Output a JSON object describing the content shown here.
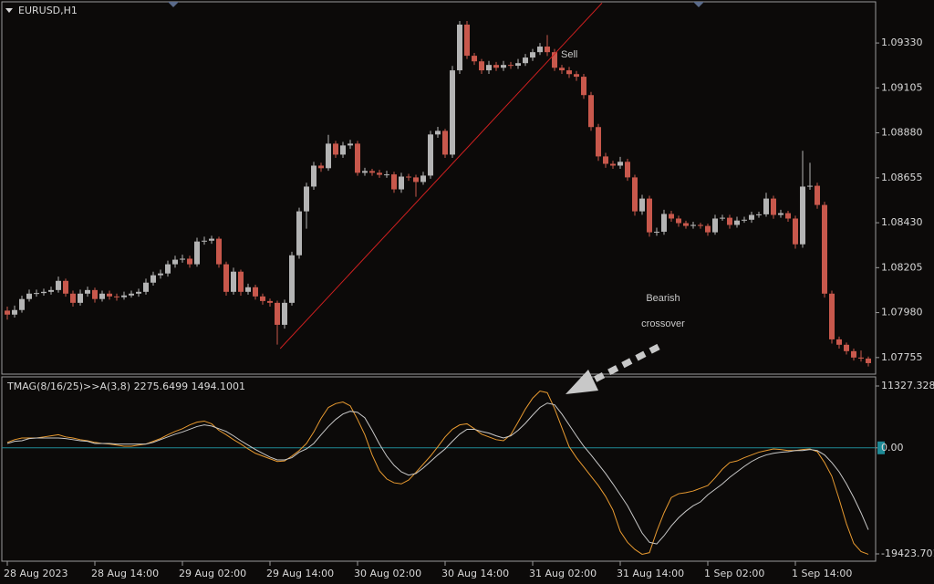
{
  "chart_data": [
    {
      "type": "candlestick",
      "title": "EURUSD,H1",
      "up_color": "#b4b4b4",
      "down_color": "#c8584c",
      "ylim": [
        1.07672,
        1.09536
      ],
      "yticks": [
        {
          "value": 1.0933,
          "label": "1.09330"
        },
        1.09105,
        {
          "value": 1.0888,
          "label": "1.08880"
        },
        1.08655,
        {
          "value": 1.0843,
          "label": "1.08430"
        },
        1.08205,
        {
          "value": 1.0798,
          "label": "1.07980"
        },
        1.07755
      ],
      "annotations": [
        {
          "lines": [
            "Sell"
          ]
        },
        {
          "lines": [
            "Bearish",
            "crossover"
          ]
        }
      ],
      "trendline": {
        "color": "#d02020",
        "points": [
          [
            37.4,
            1.078
          ],
          [
            81.5,
            1.0953
          ]
        ]
      },
      "candles": [
        [
          1.0799,
          1.0801,
          1.07945,
          1.0797
        ],
        [
          1.0797,
          1.08015,
          1.07955,
          1.07993
        ],
        [
          1.07993,
          1.08065,
          1.0798,
          1.08048
        ],
        [
          1.08048,
          1.08095,
          1.08035,
          1.08075
        ],
        [
          1.08075,
          1.08095,
          1.0806,
          1.08078
        ],
        [
          1.08078,
          1.081,
          1.08065,
          1.08084
        ],
        [
          1.08084,
          1.0811,
          1.0807,
          1.08093
        ],
        [
          1.08093,
          1.0816,
          1.0808,
          1.08139
        ],
        [
          1.08139,
          1.0815,
          1.0806,
          1.08075
        ],
        [
          1.08075,
          1.0809,
          1.0801,
          1.08029
        ],
        [
          1.08029,
          1.08095,
          1.08015,
          1.08075
        ],
        [
          1.08075,
          1.0811,
          1.0806,
          1.08093
        ],
        [
          1.08093,
          1.08105,
          1.0803,
          1.08048
        ],
        [
          1.08048,
          1.0809,
          1.08035,
          1.08075
        ],
        [
          1.08075,
          1.0809,
          1.08045,
          1.08061
        ],
        [
          1.08061,
          1.08075,
          1.0804,
          1.08057
        ],
        [
          1.08057,
          1.08085,
          1.08045,
          1.08066
        ],
        [
          1.08066,
          1.0809,
          1.08055,
          1.08075
        ],
        [
          1.08075,
          1.081,
          1.0806,
          1.08084
        ],
        [
          1.08084,
          1.0815,
          1.0807,
          1.0813
        ],
        [
          1.0813,
          1.08185,
          1.08115,
          1.08167
        ],
        [
          1.08167,
          1.08195,
          1.0815,
          1.08176
        ],
        [
          1.08176,
          1.0824,
          1.0816,
          1.08222
        ],
        [
          1.08222,
          1.08265,
          1.08205,
          1.08245
        ],
        [
          1.08245,
          1.0827,
          1.0823,
          1.0825
        ],
        [
          1.0825,
          1.08265,
          1.08205,
          1.08222
        ],
        [
          1.08222,
          1.08355,
          1.0821,
          1.08336
        ],
        [
          1.08336,
          1.0836,
          1.0832,
          1.0834
        ],
        [
          1.0834,
          1.08365,
          1.08325,
          1.0835
        ],
        [
          1.0835,
          1.0836,
          1.08205,
          1.08222
        ],
        [
          1.08222,
          1.08235,
          1.08065,
          1.08084
        ],
        [
          1.08084,
          1.08205,
          1.0807,
          1.08185
        ],
        [
          1.08185,
          1.08195,
          1.08065,
          1.08084
        ],
        [
          1.08084,
          1.08125,
          1.0807,
          1.08107
        ],
        [
          1.08107,
          1.0812,
          1.08045,
          1.08061
        ],
        [
          1.08061,
          1.08075,
          1.0802,
          1.08038
        ],
        [
          1.08038,
          1.0805,
          1.0801,
          1.08029
        ],
        [
          1.08029,
          1.0804,
          1.0782,
          1.07919
        ],
        [
          1.07919,
          1.08045,
          1.079,
          1.08029
        ],
        [
          1.08029,
          1.08285,
          1.08015,
          1.08267
        ],
        [
          1.08267,
          1.08505,
          1.0825,
          1.08487
        ],
        [
          1.08487,
          1.0863,
          1.084,
          1.08611
        ],
        [
          1.08611,
          1.08735,
          1.08595,
          1.08716
        ],
        [
          1.08716,
          1.0873,
          1.08685,
          1.08703
        ],
        [
          1.08703,
          1.0887,
          1.0869,
          1.08826
        ],
        [
          1.08826,
          1.0884,
          1.08755,
          1.08771
        ],
        [
          1.08771,
          1.08835,
          1.08755,
          1.08817
        ],
        [
          1.08817,
          1.08845,
          1.088,
          1.08826
        ],
        [
          1.08826,
          1.0884,
          1.08665,
          1.0868
        ],
        [
          1.0868,
          1.08705,
          1.08665,
          1.08689
        ],
        [
          1.08689,
          1.087,
          1.08665,
          1.0868
        ],
        [
          1.0868,
          1.08695,
          1.08655,
          1.0867
        ],
        [
          1.0867,
          1.0869,
          1.08655,
          1.08672
        ],
        [
          1.08672,
          1.08685,
          1.0858,
          1.08597
        ],
        [
          1.08597,
          1.0868,
          1.0858,
          1.08661
        ],
        [
          1.08661,
          1.08675,
          1.0864,
          1.08657
        ],
        [
          1.08657,
          1.0867,
          1.0856,
          1.08634
        ],
        [
          1.08634,
          1.08685,
          1.0862,
          1.08666
        ],
        [
          1.08666,
          1.0889,
          1.0865,
          1.08872
        ],
        [
          1.08872,
          1.0891,
          1.08855,
          1.0889
        ],
        [
          1.0889,
          1.089,
          1.08755,
          1.08771
        ],
        [
          1.08771,
          1.09215,
          1.08755,
          1.09193
        ],
        [
          1.09193,
          1.0944,
          1.09175,
          1.09422
        ],
        [
          1.09422,
          1.0944,
          1.0925,
          1.09266
        ],
        [
          1.09266,
          1.0928,
          1.0922,
          1.09238
        ],
        [
          1.09238,
          1.0925,
          1.09175,
          1.09193
        ],
        [
          1.09193,
          1.0924,
          1.09175,
          1.0922
        ],
        [
          1.0922,
          1.09235,
          1.0919,
          1.09206
        ],
        [
          1.09206,
          1.0924,
          1.0919,
          1.0922
        ],
        [
          1.0922,
          1.09235,
          1.092,
          1.09216
        ],
        [
          1.09216,
          1.0925,
          1.092,
          1.09229
        ],
        [
          1.09229,
          1.09275,
          1.09215,
          1.09257
        ],
        [
          1.09257,
          1.093,
          1.0924,
          1.09284
        ],
        [
          1.09284,
          1.0933,
          1.0927,
          1.09312
        ],
        [
          1.09312,
          1.0937,
          1.09265,
          1.09284
        ],
        [
          1.09284,
          1.093,
          1.0919,
          1.09206
        ],
        [
          1.09206,
          1.0922,
          1.09175,
          1.09193
        ],
        [
          1.09193,
          1.0921,
          1.09155,
          1.09174
        ],
        [
          1.09174,
          1.0919,
          1.0914,
          1.09161
        ],
        [
          1.09161,
          1.09175,
          1.0905,
          1.09069
        ],
        [
          1.09069,
          1.09085,
          1.0889,
          1.08909
        ],
        [
          1.08909,
          1.08925,
          1.0874,
          1.08762
        ],
        [
          1.08762,
          1.0878,
          1.08705,
          1.08725
        ],
        [
          1.08725,
          1.0874,
          1.087,
          1.08716
        ],
        [
          1.08716,
          1.0876,
          1.087,
          1.08735
        ],
        [
          1.08735,
          1.0875,
          1.0864,
          1.08657
        ],
        [
          1.08657,
          1.0867,
          1.08465,
          1.08487
        ],
        [
          1.08487,
          1.0857,
          1.0847,
          1.08551
        ],
        [
          1.08551,
          1.08565,
          1.0836,
          1.08382
        ],
        [
          1.08382,
          1.08405,
          1.08365,
          1.08385
        ],
        [
          1.08385,
          1.08495,
          1.0837,
          1.08474
        ],
        [
          1.08474,
          1.0849,
          1.08435,
          1.08451
        ],
        [
          1.08451,
          1.08465,
          1.0841,
          1.08428
        ],
        [
          1.08428,
          1.0844,
          1.084,
          1.08414
        ],
        [
          1.08414,
          1.08435,
          1.084,
          1.08419
        ],
        [
          1.08419,
          1.0843,
          1.084,
          1.08414
        ],
        [
          1.08414,
          1.08425,
          1.08365,
          1.08382
        ],
        [
          1.08382,
          1.0847,
          1.0837,
          1.08451
        ],
        [
          1.08451,
          1.0847,
          1.0844,
          1.08455
        ],
        [
          1.08455,
          1.0847,
          1.084,
          1.08419
        ],
        [
          1.08419,
          1.0846,
          1.08405,
          1.08441
        ],
        [
          1.08441,
          1.0846,
          1.0843,
          1.08445
        ],
        [
          1.08445,
          1.08485,
          1.0843,
          1.08469
        ],
        [
          1.08469,
          1.08485,
          1.08455,
          1.08472
        ],
        [
          1.08472,
          1.0858,
          1.0846,
          1.08551
        ],
        [
          1.08551,
          1.08565,
          1.0845,
          1.08469
        ],
        [
          1.08469,
          1.08495,
          1.08455,
          1.08478
        ],
        [
          1.08478,
          1.0849,
          1.08435,
          1.08451
        ],
        [
          1.08451,
          1.08465,
          1.083,
          1.08322
        ],
        [
          1.08322,
          1.0879,
          1.08305,
          1.08611
        ],
        [
          1.08611,
          1.0873,
          1.08595,
          1.08615
        ],
        [
          1.08615,
          1.0863,
          1.085,
          1.08519
        ],
        [
          1.08519,
          1.08535,
          1.08055,
          1.08075
        ],
        [
          1.08075,
          1.0809,
          1.07825,
          1.07846
        ],
        [
          1.07846,
          1.0786,
          1.078,
          1.07819
        ],
        [
          1.07819,
          1.0783,
          1.0777,
          1.07787
        ],
        [
          1.07787,
          1.078,
          1.0774,
          1.07755
        ],
        [
          1.07755,
          1.0779,
          1.07735,
          1.0775
        ],
        [
          1.0775,
          1.0776,
          1.0771,
          1.07727
        ]
      ]
    },
    {
      "type": "line",
      "title": "TMAG(8/16/25)>>A(3,8) 2275.6499 1494.1001",
      "ylim": [
        -20760,
        13000
      ],
      "yticks": [
        11327.328,
        {
          "value": 0,
          "label": "0.00"
        },
        -19423.701
      ],
      "hline": {
        "value": 0,
        "color": "#1e8a96"
      },
      "categories": [
        "28 Aug 2023",
        null,
        null,
        null,
        null,
        null,
        null,
        null,
        null,
        null,
        null,
        null,
        "28 Aug 14:00",
        null,
        null,
        null,
        null,
        null,
        null,
        null,
        null,
        null,
        null,
        null,
        "29 Aug 02:00",
        null,
        null,
        null,
        null,
        null,
        null,
        null,
        null,
        null,
        null,
        null,
        "29 Aug 14:00",
        null,
        null,
        null,
        null,
        null,
        null,
        null,
        null,
        null,
        null,
        null,
        "30 Aug 02:00",
        null,
        null,
        null,
        null,
        null,
        null,
        null,
        null,
        null,
        null,
        null,
        "30 Aug 14:00",
        null,
        null,
        null,
        null,
        null,
        null,
        null,
        null,
        null,
        null,
        null,
        "31 Aug 02:00",
        null,
        null,
        null,
        null,
        null,
        null,
        null,
        null,
        null,
        null,
        null,
        "31 Aug 14:00",
        null,
        null,
        null,
        null,
        null,
        null,
        null,
        null,
        null,
        null,
        null,
        "1 Sep 02:00",
        null,
        null,
        null,
        null,
        null,
        null,
        null,
        null,
        null,
        null,
        null,
        "1 Sep 14:00",
        null,
        null,
        null,
        null,
        null,
        null,
        null,
        null,
        null,
        null
      ],
      "series": [
        {
          "color": "#e89a30",
          "values": [
            1000,
            1500,
            1800,
            1800,
            1800,
            2000,
            2200,
            2400,
            2000,
            1800,
            1500,
            1300,
            1000,
            800,
            700,
            500,
            300,
            300,
            500,
            700,
            1200,
            1700,
            2400,
            3000,
            3500,
            4200,
            4700,
            4900,
            4400,
            3200,
            2400,
            1500,
            700,
            -200,
            -1000,
            -1500,
            -2000,
            -2500,
            -2400,
            -1500,
            -500,
            800,
            2900,
            5400,
            7400,
            8100,
            8400,
            7700,
            5200,
            2400,
            -1300,
            -4200,
            -5700,
            -6400,
            -6600,
            -5900,
            -4500,
            -3000,
            -1500,
            200,
            2000,
            3400,
            4200,
            4400,
            3500,
            2500,
            2000,
            1500,
            1300,
            2400,
            4700,
            7100,
            9100,
            10400,
            10100,
            7200,
            3700,
            200,
            -1800,
            -3500,
            -5200,
            -6900,
            -8900,
            -11400,
            -15300,
            -17300,
            -18600,
            -19500,
            -19200,
            -15300,
            -11900,
            -9100,
            -8400,
            -8200,
            -7900,
            -7400,
            -6900,
            -5500,
            -3900,
            -2700,
            -2400,
            -1800,
            -1300,
            -800,
            -500,
            -200,
            -300,
            -500,
            -500,
            -300,
            -200,
            -700,
            -2700,
            -5200,
            -9400,
            -13900,
            -17500,
            -19000,
            -19500
          ]
        },
        {
          "color": "#c8c8c8",
          "values": [
            800,
            1200,
            1300,
            1700,
            1800,
            1800,
            1800,
            1800,
            1700,
            1500,
            1300,
            1200,
            800,
            800,
            800,
            700,
            700,
            700,
            700,
            700,
            1000,
            1500,
            2000,
            2500,
            2900,
            3400,
            3900,
            4200,
            4000,
            3500,
            3000,
            2200,
            1300,
            500,
            -300,
            -1000,
            -1700,
            -2200,
            -2200,
            -1800,
            -800,
            -200,
            800,
            2400,
            3900,
            5200,
            6200,
            6700,
            6500,
            5500,
            3200,
            700,
            -1500,
            -3200,
            -4400,
            -5000,
            -4700,
            -3700,
            -2500,
            -1300,
            -200,
            1200,
            2500,
            3400,
            3400,
            3000,
            2700,
            2200,
            1800,
            2200,
            3200,
            4500,
            6000,
            7400,
            8200,
            7900,
            6200,
            4200,
            2200,
            300,
            -1300,
            -3000,
            -4700,
            -6600,
            -8600,
            -10600,
            -13100,
            -15600,
            -17300,
            -17600,
            -16100,
            -14300,
            -12800,
            -11600,
            -10600,
            -9900,
            -8600,
            -7600,
            -6600,
            -5400,
            -4400,
            -3400,
            -2500,
            -1800,
            -1300,
            -1000,
            -800,
            -700,
            -500,
            -500,
            -300,
            -500,
            -1300,
            -2700,
            -4400,
            -6600,
            -9100,
            -11900,
            -15000
          ]
        }
      ]
    }
  ]
}
